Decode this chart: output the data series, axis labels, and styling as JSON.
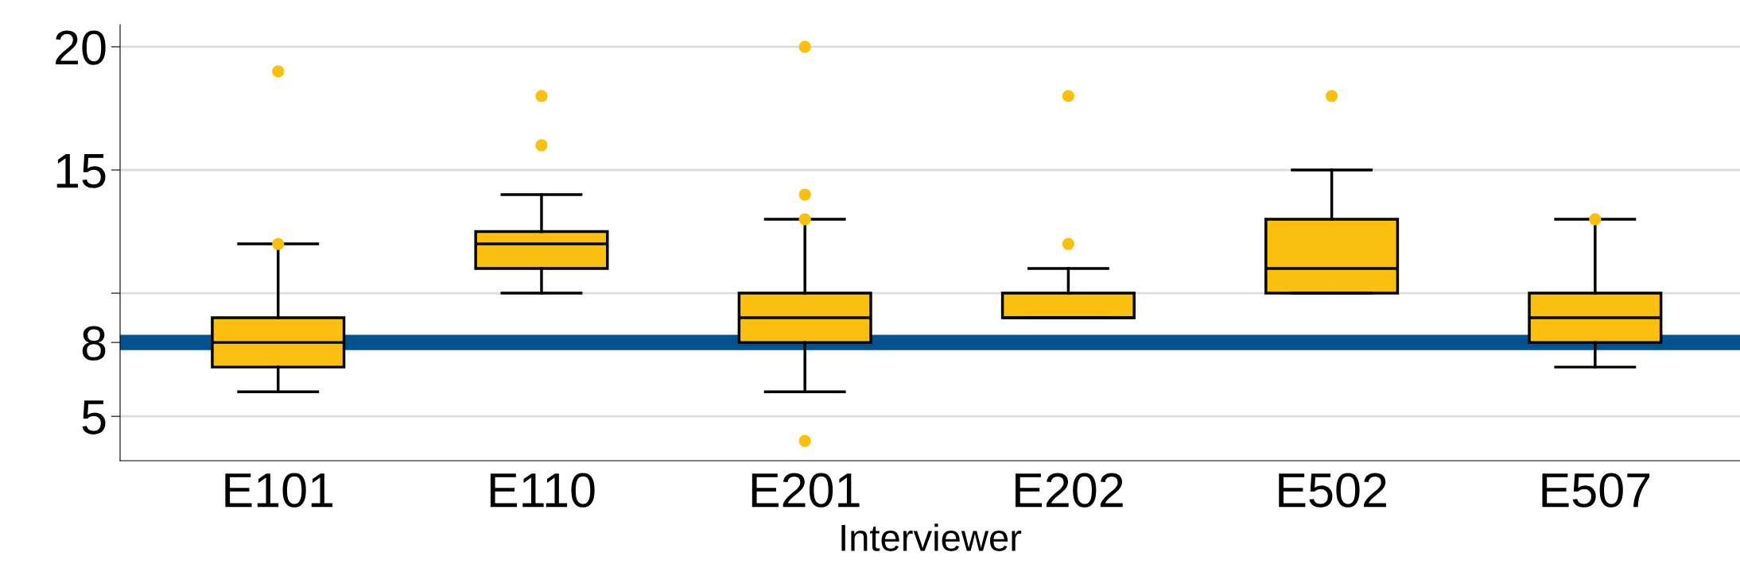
{
  "chart_data": {
    "type": "box",
    "xlabel": "Interviewer",
    "categories": [
      "E101",
      "E110",
      "E201",
      "E202",
      "E502",
      "E507"
    ],
    "series": [
      {
        "color": "#fbbf0f",
        "boxes": [
          {
            "low": 6,
            "q1": 7,
            "median": 8,
            "q3": 9,
            "high": 12,
            "outliers": [
              12,
              19
            ]
          },
          {
            "low": 10,
            "q1": 11,
            "median": 12,
            "q3": 12.5,
            "high": 14,
            "outliers": [
              16,
              18
            ]
          },
          {
            "low": 6,
            "q1": 8,
            "median": 9,
            "q3": 10,
            "high": 13,
            "outliers": [
              20,
              14,
              13,
              4
            ]
          },
          {
            "low": 9,
            "q1": 9,
            "median": 9,
            "q3": 10,
            "high": 11,
            "outliers": [
              12,
              18
            ]
          },
          {
            "low": 10,
            "q1": 10,
            "median": 11,
            "q3": 13,
            "high": 15,
            "outliers": [
              18
            ]
          },
          {
            "low": 7,
            "q1": 8,
            "median": 9,
            "q3": 10,
            "high": 13,
            "outliers": [
              13
            ]
          }
        ]
      }
    ],
    "ylim": [
      3.2,
      20.9
    ],
    "yticks": [
      5,
      8,
      {
        "value": 10,
        "label": null
      },
      15,
      20
    ],
    "grid": "y",
    "ref_lines": [
      {
        "axis": "y",
        "value": 8,
        "color": "#02528f"
      }
    ]
  }
}
